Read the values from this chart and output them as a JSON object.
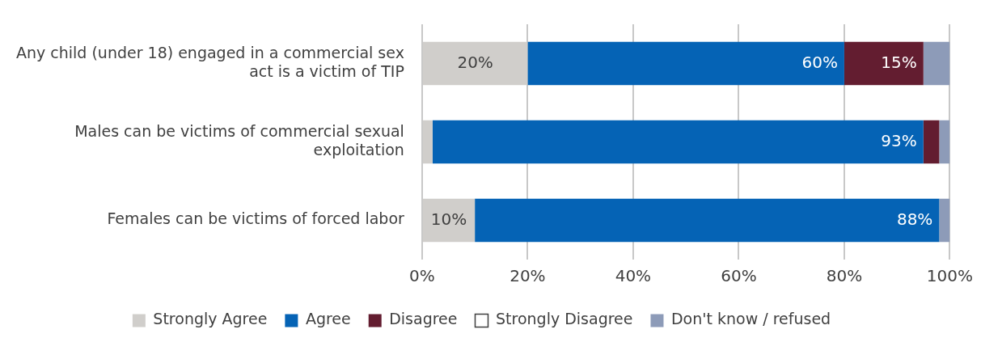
{
  "chart_data": {
    "type": "bar",
    "orientation": "horizontal",
    "stacked": true,
    "categories": [
      "Any child (under 18) engaged in a commercial sex act is a victim of TIP",
      "Males can be victims of commercial sexual exploitation",
      "Females can be victims of forced labor"
    ],
    "series": [
      {
        "name": "Strongly Agree",
        "color": "#d0cecb",
        "values": [
          20,
          2,
          10
        ],
        "value_labels": [
          "20%",
          null,
          "10%"
        ]
      },
      {
        "name": "Agree",
        "color": "#0563b5",
        "values": [
          60,
          93,
          88
        ],
        "value_labels": [
          "60%",
          "93%",
          "88%"
        ]
      },
      {
        "name": "Disagree",
        "color": "#631d30",
        "values": [
          15,
          3,
          0
        ],
        "value_labels": [
          "15%",
          null,
          null
        ]
      },
      {
        "name": "Strongly Disagree",
        "color": "#ffffff",
        "values": [
          0,
          0,
          0
        ]
      },
      {
        "name": "Don't know / refused",
        "color": "#8d9bb8",
        "values": [
          5,
          2,
          2
        ]
      }
    ],
    "xlim": [
      0,
      100
    ],
    "xticks": [
      {
        "value": 0,
        "label": "0%"
      },
      {
        "value": 20,
        "label": "20%"
      },
      {
        "value": 40,
        "label": "40%"
      },
      {
        "value": 60,
        "label": "60%"
      },
      {
        "value": 80,
        "label": "80%"
      },
      {
        "value": 100,
        "label": "100%"
      }
    ],
    "grid": "x",
    "legend": "bottom"
  }
}
